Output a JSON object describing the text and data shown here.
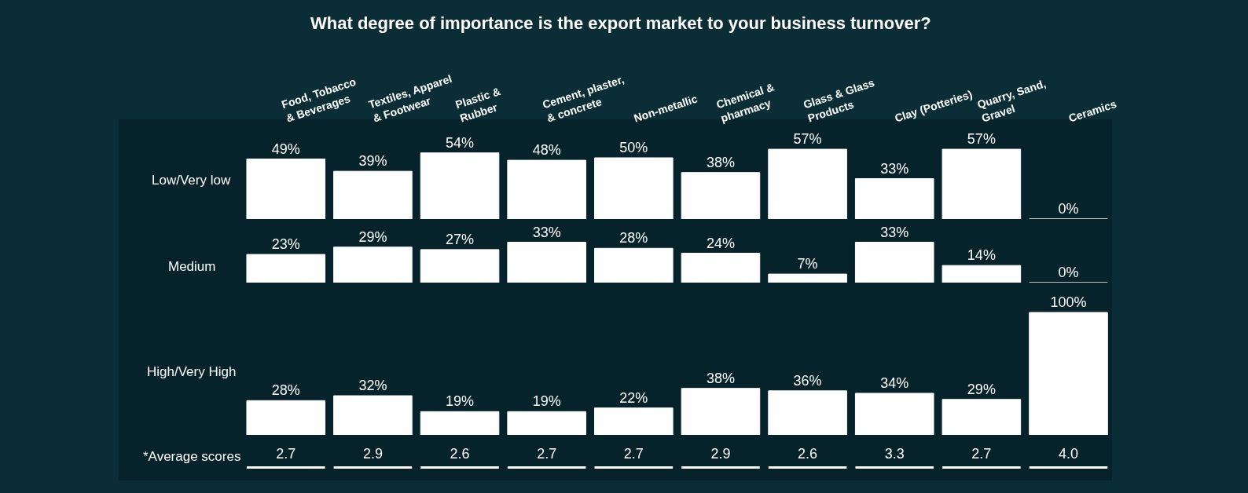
{
  "chart_data": [
    {
      "type": "bar",
      "title": "What degree of importance is the export market to your business turnover?",
      "ylabel": "Low/Very low",
      "tick_labels": "x",
      "color": "#ffffff",
      "categories": [
        "Food, Tobacco\n& Beverages",
        "Textiles, Apparel\n& Footwear",
        "Plastic &\nRubber",
        "Cement, plaster,\n& concrete",
        "Non-metallic",
        "Chemical &\npharmacy",
        "Glass & Glass\nProducts",
        "Clay (Potteries)",
        "Quarry, Sand,\nGravel",
        "Ceramics"
      ],
      "values": [
        49,
        39,
        54,
        48,
        50,
        38,
        57,
        33,
        57,
        0
      ],
      "value_labels": [
        "49%",
        "39%",
        "54%",
        "48%",
        "50%",
        "38%",
        "57%",
        "33%",
        "57%",
        "0%"
      ]
    },
    {
      "type": "bar",
      "ylabel": "Medium",
      "tick_labels": false,
      "color": "#ffffff",
      "categories": [
        null,
        null,
        null,
        null,
        null,
        null,
        null,
        null,
        null,
        null
      ],
      "values": [
        23,
        29,
        27,
        33,
        28,
        24,
        7,
        33,
        14,
        0
      ],
      "value_labels": [
        "23%",
        "29%",
        "27%",
        "33%",
        "28%",
        "24%",
        "7%",
        "33%",
        "14%",
        "0%"
      ]
    },
    {
      "type": "bar",
      "ylabel": "High/Very High",
      "tick_labels": false,
      "color": "#ffffff",
      "categories": [
        null,
        null,
        null,
        null,
        null,
        null,
        null,
        null,
        null,
        null
      ],
      "values": [
        28,
        32,
        19,
        19,
        22,
        38,
        36,
        34,
        29,
        100
      ],
      "value_labels": [
        "28%",
        "32%",
        "19%",
        "19%",
        "22%",
        "38%",
        "36%",
        "34%",
        "29%",
        "100%"
      ]
    },
    {
      "type": "other",
      "ylabel": "*Average scores",
      "color": "#ffffff",
      "values": [
        2.7,
        2.9,
        2.6,
        2.7,
        2.7,
        2.9,
        2.6,
        3.3,
        2.7,
        4.0
      ],
      "value_labels": [
        "2.7",
        "2.9",
        "2.6",
        "2.7",
        "2.7",
        "2.9",
        "2.6",
        "3.3",
        "2.7",
        "4.0"
      ]
    }
  ]
}
